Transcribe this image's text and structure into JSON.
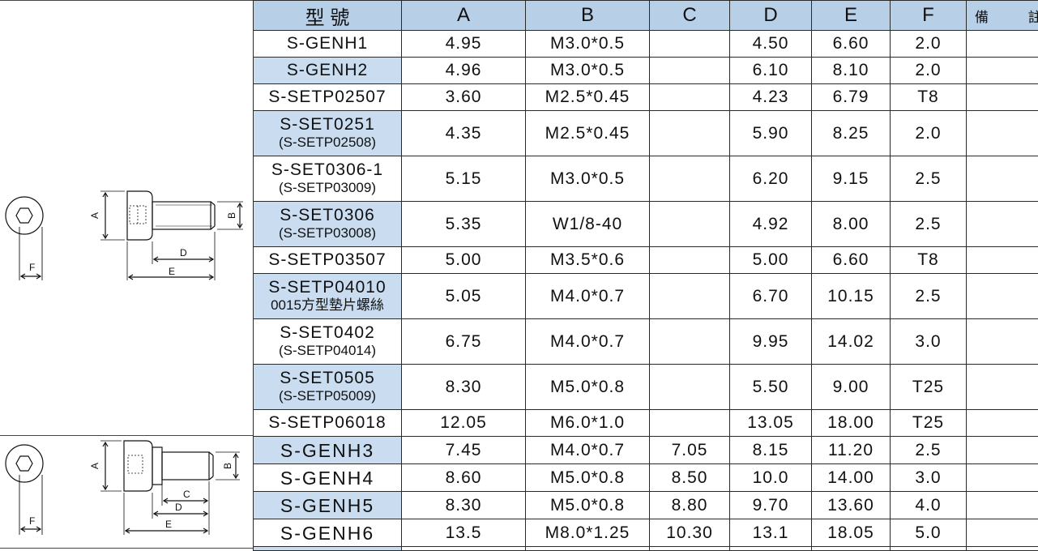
{
  "table": {
    "headers": [
      "型 號",
      "A",
      "B",
      "C",
      "D",
      "E",
      "F",
      "備 註"
    ],
    "rows": [
      {
        "model": "S-GENH1",
        "sub": "",
        "a": "4.95",
        "b": "M3.0*0.5",
        "c": "",
        "d": "4.50",
        "e": "6.60",
        "f": "2.0",
        "note": ""
      },
      {
        "model": "S-GENH2",
        "sub": "",
        "a": "4.96",
        "b": "M3.0*0.5",
        "c": "",
        "d": "6.10",
        "e": "8.10",
        "f": "2.0",
        "note": ""
      },
      {
        "model": "S-SETP02507",
        "sub": "",
        "a": "3.60",
        "b": "M2.5*0.45",
        "c": "",
        "d": "4.23",
        "e": "6.79",
        "f": "T8",
        "note": ""
      },
      {
        "model": "S-SET0251",
        "sub": "(S-SETP02508)",
        "a": "4.35",
        "b": "M2.5*0.45",
        "c": "",
        "d": "5.90",
        "e": "8.25",
        "f": "2.0",
        "note": ""
      },
      {
        "model": "S-SET0306-1",
        "sub": "(S-SETP03009)",
        "a": "5.15",
        "b": "M3.0*0.5",
        "c": "",
        "d": "6.20",
        "e": "9.15",
        "f": "2.5",
        "note": ""
      },
      {
        "model": "S-SET0306",
        "sub": "(S-SETP03008)",
        "a": "5.35",
        "b": "W1/8-40",
        "c": "",
        "d": "4.92",
        "e": "8.00",
        "f": "2.5",
        "note": ""
      },
      {
        "model": "S-SETP03507",
        "sub": "",
        "a": "5.00",
        "b": "M3.5*0.6",
        "c": "",
        "d": "5.00",
        "e": "6.60",
        "f": "T8",
        "note": ""
      },
      {
        "model": "S-SETP04010",
        "sub": "0015方型墊片螺絲",
        "a": "5.05",
        "b": "M4.0*0.7",
        "c": "",
        "d": "6.70",
        "e": "10.15",
        "f": "2.5",
        "note": ""
      },
      {
        "model": "S-SET0402",
        "sub": "(S-SETP04014)",
        "a": "6.75",
        "b": "M4.0*0.7",
        "c": "",
        "d": "9.95",
        "e": "14.02",
        "f": "3.0",
        "note": ""
      },
      {
        "model": "S-SET0505",
        "sub": "(S-SETP05009)",
        "a": "8.30",
        "b": "M5.0*0.8",
        "c": "",
        "d": "5.50",
        "e": "9.00",
        "f": "T25",
        "note": ""
      },
      {
        "model": "S-SETP06018",
        "sub": "",
        "a": "12.05",
        "b": "M6.0*1.0",
        "c": "",
        "d": "13.05",
        "e": "18.00",
        "f": "T25",
        "note": ""
      },
      {
        "model": "S-GENH3",
        "sub": "",
        "a": "7.45",
        "b": "M4.0*0.7",
        "c": "7.05",
        "d": "8.15",
        "e": "11.20",
        "f": "2.5",
        "note": ""
      },
      {
        "model": "S-GENH4",
        "sub": "",
        "a": "8.60",
        "b": "M5.0*0.8",
        "c": "8.50",
        "d": "10.0",
        "e": "14.00",
        "f": "3.0",
        "note": ""
      },
      {
        "model": "S-GENH5",
        "sub": "",
        "a": "8.30",
        "b": "M5.0*0.8",
        "c": "8.80",
        "d": "9.70",
        "e": "13.60",
        "f": "4.0",
        "note": ""
      },
      {
        "model": "S-GENH6",
        "sub": "",
        "a": "13.5",
        "b": "M8.0*1.25",
        "c": "10.30",
        "d": "13.1",
        "e": "18.05",
        "f": "5.0",
        "note": ""
      }
    ]
  },
  "drawings": {
    "upper": {
      "labels": [
        "A",
        "B",
        "D",
        "E",
        "F"
      ]
    },
    "lower": {
      "labels": [
        "A",
        "B",
        "C",
        "D",
        "E",
        "F"
      ]
    }
  }
}
